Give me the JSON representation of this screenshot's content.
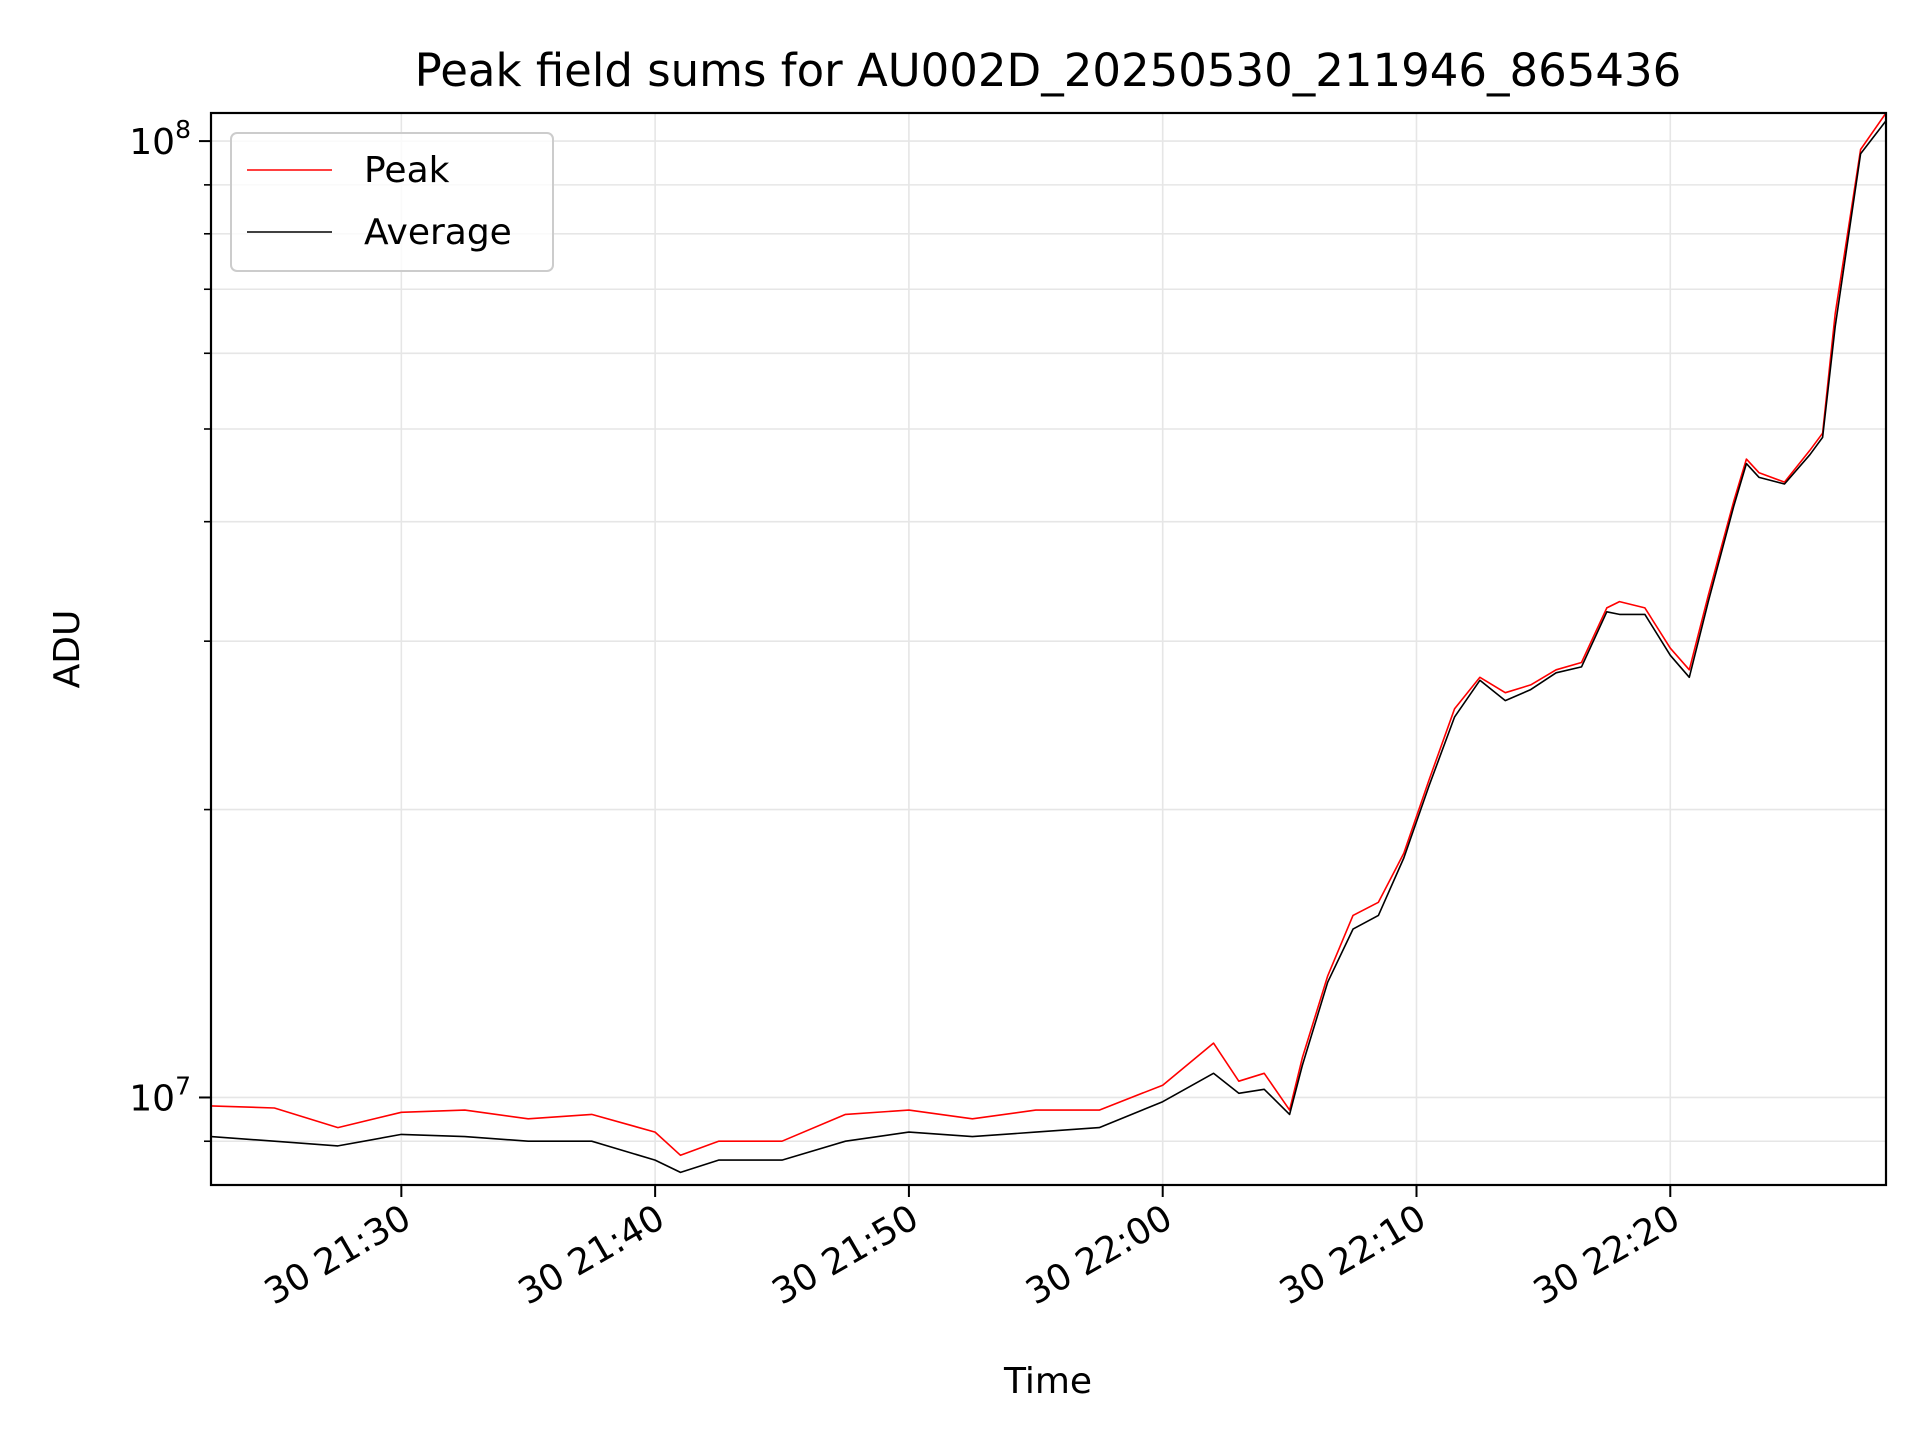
{
  "chart_data": {
    "type": "line",
    "title": "Peak field sums for AU002D_20250530_211946_865436",
    "xlabel": "Time",
    "ylabel": "ADU",
    "yscale": "log",
    "xlim": [
      "2025-05-30 21:22:30",
      "2025-05-30 22:28:30"
    ],
    "ylim": [
      8100000,
      107000000
    ],
    "x_ticks": [
      "30 21:30",
      "30 21:40",
      "30 21:50",
      "30 22:00",
      "30 22:10",
      "30 22:20"
    ],
    "y_ticks": [
      {
        "base": "10",
        "exp": "7"
      },
      {
        "base": "10",
        "exp": "8"
      }
    ],
    "grid": true,
    "legend_position": "top-left",
    "x": [
      "21:22:30",
      "21:25:00",
      "21:27:30",
      "21:30:00",
      "21:32:30",
      "21:35:00",
      "21:37:30",
      "21:40:00",
      "21:41:00",
      "21:42:30",
      "21:45:00",
      "21:47:30",
      "21:50:00",
      "21:52:30",
      "21:55:00",
      "21:57:30",
      "22:00:00",
      "22:02:00",
      "22:03:00",
      "22:04:00",
      "22:05:00",
      "22:05:30",
      "22:06:30",
      "22:07:30",
      "22:08:30",
      "22:09:30",
      "22:10:30",
      "22:11:30",
      "22:12:30",
      "22:13:30",
      "22:14:30",
      "22:15:30",
      "22:16:30",
      "22:17:30",
      "22:18:00",
      "22:19:00",
      "22:20:00",
      "22:20:45",
      "22:21:30",
      "22:22:30",
      "22:23:00",
      "22:23:30",
      "22:24:30",
      "22:25:30",
      "22:26:00",
      "22:26:30",
      "22:27:30",
      "22:28:30"
    ],
    "series": [
      {
        "name": "Peak",
        "color": "#ff0000",
        "values": [
          9800000,
          9750000,
          9300000,
          9650000,
          9700000,
          9500000,
          9600000,
          9200000,
          8700000,
          9000000,
          9000000,
          9600000,
          9700000,
          9500000,
          9700000,
          9700000,
          10300000,
          11400000,
          10400000,
          10600000,
          9700000,
          11000000,
          13400000,
          15500000,
          16000000,
          18000000,
          21500000,
          25500000,
          27500000,
          26500000,
          27000000,
          28000000,
          28500000,
          32500000,
          33000000,
          32500000,
          29500000,
          28000000,
          33500000,
          42000000,
          46500000,
          45000000,
          44000000,
          47500000,
          49500000,
          66000000,
          98000000,
          107000000
        ]
      },
      {
        "name": "Average",
        "color": "#000000",
        "values": [
          9100000,
          9000000,
          8900000,
          9150000,
          9100000,
          9000000,
          9000000,
          8600000,
          8350000,
          8600000,
          8600000,
          9000000,
          9200000,
          9100000,
          9200000,
          9300000,
          9900000,
          10600000,
          10100000,
          10200000,
          9600000,
          10800000,
          13200000,
          15000000,
          15500000,
          17800000,
          21200000,
          25000000,
          27300000,
          26000000,
          26700000,
          27800000,
          28200000,
          32200000,
          32000000,
          32000000,
          29000000,
          27500000,
          33000000,
          41500000,
          46000000,
          44500000,
          43800000,
          47000000,
          49000000,
          64000000,
          97000000,
          105000000
        ]
      }
    ]
  }
}
